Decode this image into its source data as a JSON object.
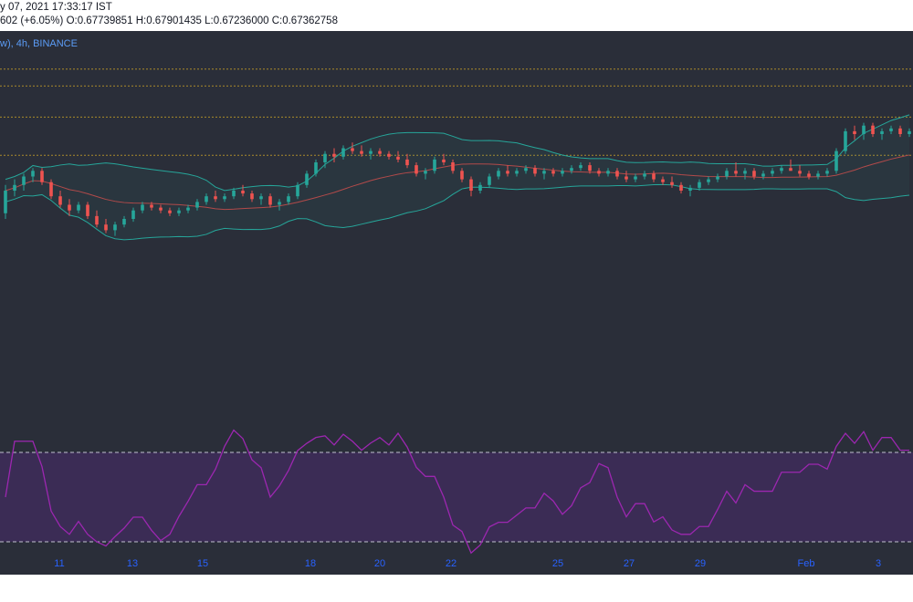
{
  "header": {
    "date_text": "y 07, 2021 17:33:17 IST",
    "change_text": "602 (+6.05%)",
    "o_label": "O:",
    "o_value": "0.67739851",
    "h_label": "H:",
    "h_value": "0.67901435",
    "l_label": "L:",
    "l_value": "0.67236000",
    "c_label": "C:",
    "c_value": "0.67362758"
  },
  "symbol_text": "w), 4h, BINANCE",
  "colors": {
    "background": "#2a2e39",
    "up": "#26a69a",
    "down": "#ef5350",
    "bb_band": "#26a69a",
    "bb_basis": "#b24a4a",
    "rsi_line": "#9c27b0",
    "rsi_fill": "#3b2c55",
    "level_line": "#c9a227"
  },
  "chart_data": [
    {
      "type": "candlestick",
      "title": "",
      "interval": "4h",
      "exchange": "BINANCE",
      "x_ticks": [
        "11",
        "13",
        "15",
        "18",
        "20",
        "22",
        "25",
        "27",
        "29",
        "Feb",
        "3"
      ],
      "y_levels": [
        62.5,
        76.0,
        87.0,
        93.0
      ],
      "series": [
        {
          "points": [
            [
              42,
              52,
              40,
              50
            ],
            [
              50,
              54,
              48,
              52
            ],
            [
              52,
              56,
              50,
              55
            ],
            [
              55,
              58,
              53,
              57
            ],
            [
              57,
              58,
              52,
              53
            ],
            [
              53,
              54,
              47,
              48
            ],
            [
              48,
              50,
              44,
              45
            ],
            [
              45,
              47,
              41,
              43
            ],
            [
              43,
              46,
              42,
              45
            ],
            [
              45,
              46,
              40,
              41
            ],
            [
              41,
              43,
              37,
              38
            ],
            [
              38,
              40,
              35,
              36
            ],
            [
              36,
              39,
              34,
              38
            ],
            [
              38,
              41,
              37,
              40
            ],
            [
              40,
              44,
              39,
              43
            ],
            [
              43,
              46,
              42,
              45
            ],
            [
              45,
              46,
              43,
              44
            ],
            [
              44,
              45,
              42,
              43
            ],
            [
              43,
              44,
              41,
              42
            ],
            [
              42,
              44,
              41,
              43
            ],
            [
              43,
              45,
              42,
              44
            ],
            [
              44,
              47,
              43,
              46
            ],
            [
              46,
              49,
              45,
              48
            ],
            [
              48,
              50,
              46,
              47
            ],
            [
              47,
              49,
              46,
              48
            ],
            [
              48,
              51,
              47,
              50
            ],
            [
              50,
              52,
              48,
              49
            ],
            [
              49,
              50,
              46,
              47
            ],
            [
              47,
              49,
              45,
              48
            ],
            [
              48,
              49,
              44,
              45
            ],
            [
              45,
              47,
              43,
              46
            ],
            [
              46,
              49,
              45,
              48
            ],
            [
              48,
              53,
              47,
              52
            ],
            [
              52,
              57,
              51,
              56
            ],
            [
              56,
              61,
              55,
              60
            ],
            [
              60,
              64,
              58,
              63
            ],
            [
              63,
              65,
              60,
              62
            ],
            [
              62,
              66,
              61,
              65
            ],
            [
              65,
              67,
              63,
              64
            ],
            [
              64,
              66,
              62,
              63
            ],
            [
              63,
              65,
              61,
              64
            ],
            [
              64,
              65,
              62,
              63
            ],
            [
              63,
              64,
              61,
              62
            ],
            [
              62,
              64,
              60,
              61
            ],
            [
              61,
              63,
              58,
              59
            ],
            [
              59,
              60,
              55,
              56
            ],
            [
              56,
              58,
              54,
              57
            ],
            [
              57,
              62,
              56,
              61
            ],
            [
              61,
              63,
              59,
              60
            ],
            [
              60,
              61,
              56,
              57
            ],
            [
              57,
              58,
              53,
              54
            ],
            [
              54,
              55,
              48,
              50
            ],
            [
              50,
              53,
              49,
              52
            ],
            [
              52,
              56,
              51,
              55
            ],
            [
              55,
              58,
              54,
              57
            ],
            [
              57,
              59,
              55,
              56
            ],
            [
              56,
              58,
              55,
              57
            ],
            [
              57,
              59,
              56,
              58
            ],
            [
              58,
              59,
              55,
              56
            ],
            [
              56,
              58,
              54,
              57
            ],
            [
              57,
              58,
              55,
              56
            ],
            [
              56,
              58,
              55,
              57
            ],
            [
              57,
              59,
              56,
              58
            ],
            [
              58,
              60,
              57,
              59
            ],
            [
              59,
              60,
              56,
              57
            ],
            [
              57,
              58,
              55,
              56
            ],
            [
              56,
              58,
              55,
              57
            ],
            [
              57,
              58,
              54,
              55
            ],
            [
              55,
              57,
              53,
              54
            ],
            [
              54,
              56,
              53,
              55
            ],
            [
              55,
              57,
              54,
              56
            ],
            [
              56,
              57,
              53,
              54
            ],
            [
              54,
              55,
              52,
              53
            ],
            [
              53,
              55,
              51,
              52
            ],
            [
              52,
              53,
              49,
              50
            ],
            [
              50,
              52,
              48,
              51
            ],
            [
              51,
              54,
              50,
              53
            ],
            [
              53,
              55,
              52,
              54
            ],
            [
              54,
              56,
              53,
              55
            ],
            [
              55,
              58,
              54,
              57
            ],
            [
              57,
              60,
              55,
              56
            ],
            [
              56,
              58,
              54,
              57
            ],
            [
              57,
              58,
              54,
              55
            ],
            [
              55,
              57,
              54,
              56
            ],
            [
              56,
              58,
              55,
              57
            ],
            [
              57,
              59,
              56,
              58
            ],
            [
              58,
              61,
              57,
              57
            ],
            [
              57,
              59,
              55,
              56
            ],
            [
              56,
              57,
              54,
              55
            ],
            [
              55,
              57,
              54,
              56
            ],
            [
              56,
              58,
              55,
              57
            ],
            [
              57,
              65,
              56,
              64
            ],
            [
              64,
              72,
              63,
              71
            ],
            [
              71,
              73,
              68,
              70
            ],
            [
              70,
              74,
              68,
              73
            ],
            [
              73,
              74,
              69,
              70
            ],
            [
              70,
              72,
              68,
              71
            ],
            [
              71,
              73,
              70,
              72
            ],
            [
              72,
              73,
              69,
              70
            ],
            [
              70,
              72,
              69,
              71
            ]
          ]
        }
      ],
      "indicators": {
        "bollinger_bands": {
          "length": 20,
          "mult": 2
        },
        "rsi": {
          "length": 14,
          "upper": 70,
          "lower": 30
        }
      }
    }
  ]
}
